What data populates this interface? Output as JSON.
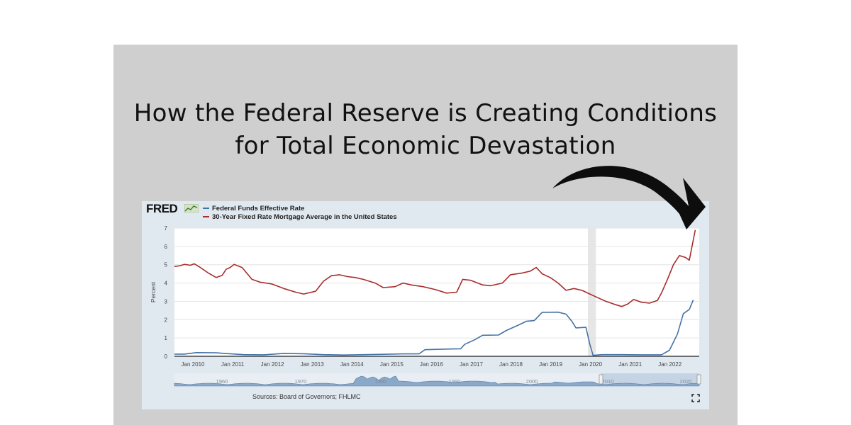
{
  "headline": {
    "line1": "How the Federal Reserve is Creating Conditions",
    "line2": "for Total Economic Devastation"
  },
  "brand": {
    "logo_text": "FRED",
    "logo_icon": "line-chart-icon"
  },
  "footer": {
    "sources": "Sources: Board of Governors; FHLMC",
    "expand_icon": "fullscreen-icon"
  },
  "colors": {
    "fed_funds": "#4572a7",
    "mortgage": "#aa2c2c",
    "recession": "#e6e6e6",
    "panel": "#cfcfcf",
    "frame": "#e1e9f0"
  },
  "chart_data": {
    "type": "line",
    "title": "",
    "ylabel": "Percent",
    "xlabel": "",
    "ylim": [
      0,
      7
    ],
    "yticks": [
      "0",
      "1",
      "2",
      "3",
      "4",
      "5",
      "6",
      "7"
    ],
    "xticks": [
      {
        "label": "Jan 2010",
        "x": 2010.0
      },
      {
        "label": "Jan 2011",
        "x": 2011.0
      },
      {
        "label": "Jan 2012",
        "x": 2012.0
      },
      {
        "label": "Jan 2013",
        "x": 2013.0
      },
      {
        "label": "Jan 2014",
        "x": 2014.0
      },
      {
        "label": "Jan 2015",
        "x": 2015.0
      },
      {
        "label": "Jan 2016",
        "x": 2016.0
      },
      {
        "label": "Jan 2017",
        "x": 2017.0
      },
      {
        "label": "Jan 2018",
        "x": 2018.0
      },
      {
        "label": "Jan 2019",
        "x": 2019.0
      },
      {
        "label": "Jan 2020",
        "x": 2020.0
      },
      {
        "label": "Jan 2021",
        "x": 2021.0
      },
      {
        "label": "Jan 2022",
        "x": 2022.0
      }
    ],
    "xlim": [
      2009.75,
      2022.95
    ],
    "grid": true,
    "legend": "top-left",
    "recession": {
      "start": 2020.15,
      "end": 2020.35
    },
    "series": [
      {
        "name": "Federal Funds Effective Rate",
        "color": "#4572a7",
        "points": [
          [
            2009.75,
            0.12
          ],
          [
            2010.0,
            0.12
          ],
          [
            2010.3,
            0.2
          ],
          [
            2010.8,
            0.19
          ],
          [
            2011.0,
            0.16
          ],
          [
            2011.5,
            0.09
          ],
          [
            2012.0,
            0.08
          ],
          [
            2012.5,
            0.16
          ],
          [
            2013.0,
            0.14
          ],
          [
            2013.5,
            0.09
          ],
          [
            2014.0,
            0.07
          ],
          [
            2014.5,
            0.09
          ],
          [
            2015.0,
            0.11
          ],
          [
            2015.5,
            0.13
          ],
          [
            2015.9,
            0.13
          ],
          [
            2016.05,
            0.36
          ],
          [
            2016.5,
            0.39
          ],
          [
            2016.95,
            0.41
          ],
          [
            2017.05,
            0.65
          ],
          [
            2017.3,
            0.9
          ],
          [
            2017.5,
            1.15
          ],
          [
            2017.9,
            1.16
          ],
          [
            2018.1,
            1.41
          ],
          [
            2018.4,
            1.7
          ],
          [
            2018.6,
            1.91
          ],
          [
            2018.8,
            1.95
          ],
          [
            2019.0,
            2.4
          ],
          [
            2019.4,
            2.41
          ],
          [
            2019.6,
            2.3
          ],
          [
            2019.75,
            1.9
          ],
          [
            2019.85,
            1.55
          ],
          [
            2020.1,
            1.58
          ],
          [
            2020.2,
            0.65
          ],
          [
            2020.28,
            0.05
          ],
          [
            2020.5,
            0.09
          ],
          [
            2021.0,
            0.09
          ],
          [
            2021.5,
            0.08
          ],
          [
            2022.0,
            0.08
          ],
          [
            2022.2,
            0.33
          ],
          [
            2022.4,
            1.21
          ],
          [
            2022.55,
            2.33
          ],
          [
            2022.7,
            2.56
          ],
          [
            2022.8,
            3.08
          ]
        ]
      },
      {
        "name": "30-Year Fixed Rate Mortgage Average in the United States",
        "color": "#aa2c2c",
        "points": [
          [
            2009.75,
            4.9
          ],
          [
            2009.9,
            4.95
          ],
          [
            2010.0,
            5.02
          ],
          [
            2010.15,
            4.97
          ],
          [
            2010.25,
            5.05
          ],
          [
            2010.4,
            4.85
          ],
          [
            2010.6,
            4.55
          ],
          [
            2010.8,
            4.3
          ],
          [
            2010.95,
            4.42
          ],
          [
            2011.05,
            4.75
          ],
          [
            2011.15,
            4.85
          ],
          [
            2011.25,
            5.02
          ],
          [
            2011.45,
            4.85
          ],
          [
            2011.7,
            4.2
          ],
          [
            2011.9,
            4.05
          ],
          [
            2012.2,
            3.95
          ],
          [
            2012.5,
            3.7
          ],
          [
            2012.8,
            3.5
          ],
          [
            2013.0,
            3.4
          ],
          [
            2013.3,
            3.55
          ],
          [
            2013.5,
            4.1
          ],
          [
            2013.7,
            4.4
          ],
          [
            2013.9,
            4.45
          ],
          [
            2014.1,
            4.35
          ],
          [
            2014.3,
            4.3
          ],
          [
            2014.5,
            4.2
          ],
          [
            2014.8,
            4.0
          ],
          [
            2015.0,
            3.75
          ],
          [
            2015.3,
            3.8
          ],
          [
            2015.5,
            4.0
          ],
          [
            2015.7,
            3.9
          ],
          [
            2016.0,
            3.8
          ],
          [
            2016.3,
            3.65
          ],
          [
            2016.6,
            3.45
          ],
          [
            2016.85,
            3.5
          ],
          [
            2017.0,
            4.2
          ],
          [
            2017.2,
            4.15
          ],
          [
            2017.5,
            3.9
          ],
          [
            2017.7,
            3.85
          ],
          [
            2018.0,
            4.0
          ],
          [
            2018.2,
            4.45
          ],
          [
            2018.5,
            4.55
          ],
          [
            2018.7,
            4.65
          ],
          [
            2018.85,
            4.85
          ],
          [
            2019.0,
            4.5
          ],
          [
            2019.2,
            4.3
          ],
          [
            2019.4,
            4.0
          ],
          [
            2019.6,
            3.6
          ],
          [
            2019.8,
            3.7
          ],
          [
            2020.0,
            3.6
          ],
          [
            2020.2,
            3.4
          ],
          [
            2020.4,
            3.2
          ],
          [
            2020.6,
            3.0
          ],
          [
            2020.8,
            2.85
          ],
          [
            2021.0,
            2.72
          ],
          [
            2021.15,
            2.85
          ],
          [
            2021.3,
            3.1
          ],
          [
            2021.5,
            2.95
          ],
          [
            2021.7,
            2.9
          ],
          [
            2021.9,
            3.05
          ],
          [
            2022.0,
            3.45
          ],
          [
            2022.15,
            4.2
          ],
          [
            2022.3,
            5.0
          ],
          [
            2022.45,
            5.5
          ],
          [
            2022.6,
            5.4
          ],
          [
            2022.7,
            5.25
          ],
          [
            2022.85,
            6.9
          ]
        ]
      }
    ],
    "navigator": {
      "labels": [
        "1960",
        "1970",
        "1980",
        "1990",
        "2000",
        "2010",
        "2020"
      ]
    }
  }
}
